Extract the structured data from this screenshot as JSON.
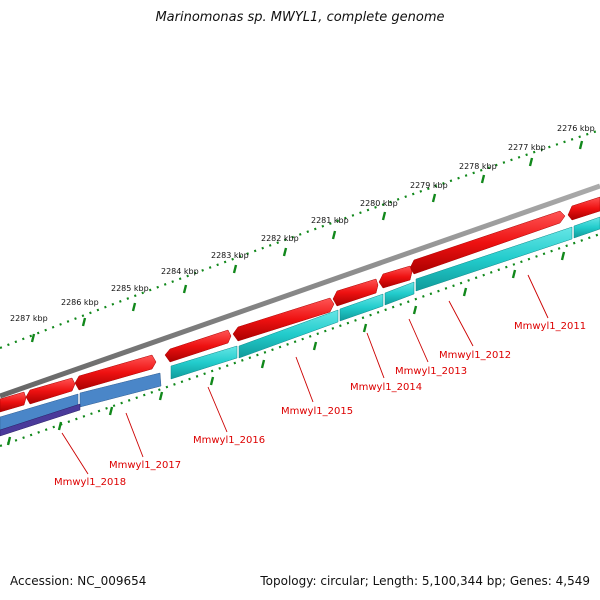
{
  "title": "Marinomonas sp. MWYL1, complete genome",
  "footer": {
    "accession": "Accession: NC_009654",
    "summary": "Topology: circular; Length: 5,100,344 bp; Genes: 4,549"
  },
  "scale_labels": [
    "2276 kbp",
    "2277 kbp",
    "2278 kbp",
    "2279 kbp",
    "2280 kbp",
    "2281 kbp",
    "2282 kbp",
    "2283 kbp",
    "2284 kbp",
    "2285 kbp",
    "2286 kbp",
    "2287 kbp"
  ],
  "gene_labels": [
    "Mmwyl1_2011",
    "Mmwyl1_2012",
    "Mmwyl1_2013",
    "Mmwyl1_2014",
    "Mmwyl1_2015",
    "Mmwyl1_2016",
    "Mmwyl1_2017",
    "Mmwyl1_2018"
  ],
  "colors": {
    "backbone": "#808080",
    "forward_gene": "#ee1111",
    "cds_band": "#22cccc",
    "cds_band_alt": "#4a86c8",
    "cds_band_dark": "#4a3a9a",
    "scale_dots": "#11881b",
    "label_text": "#dd0000",
    "leader_line": "#cc0000"
  }
}
